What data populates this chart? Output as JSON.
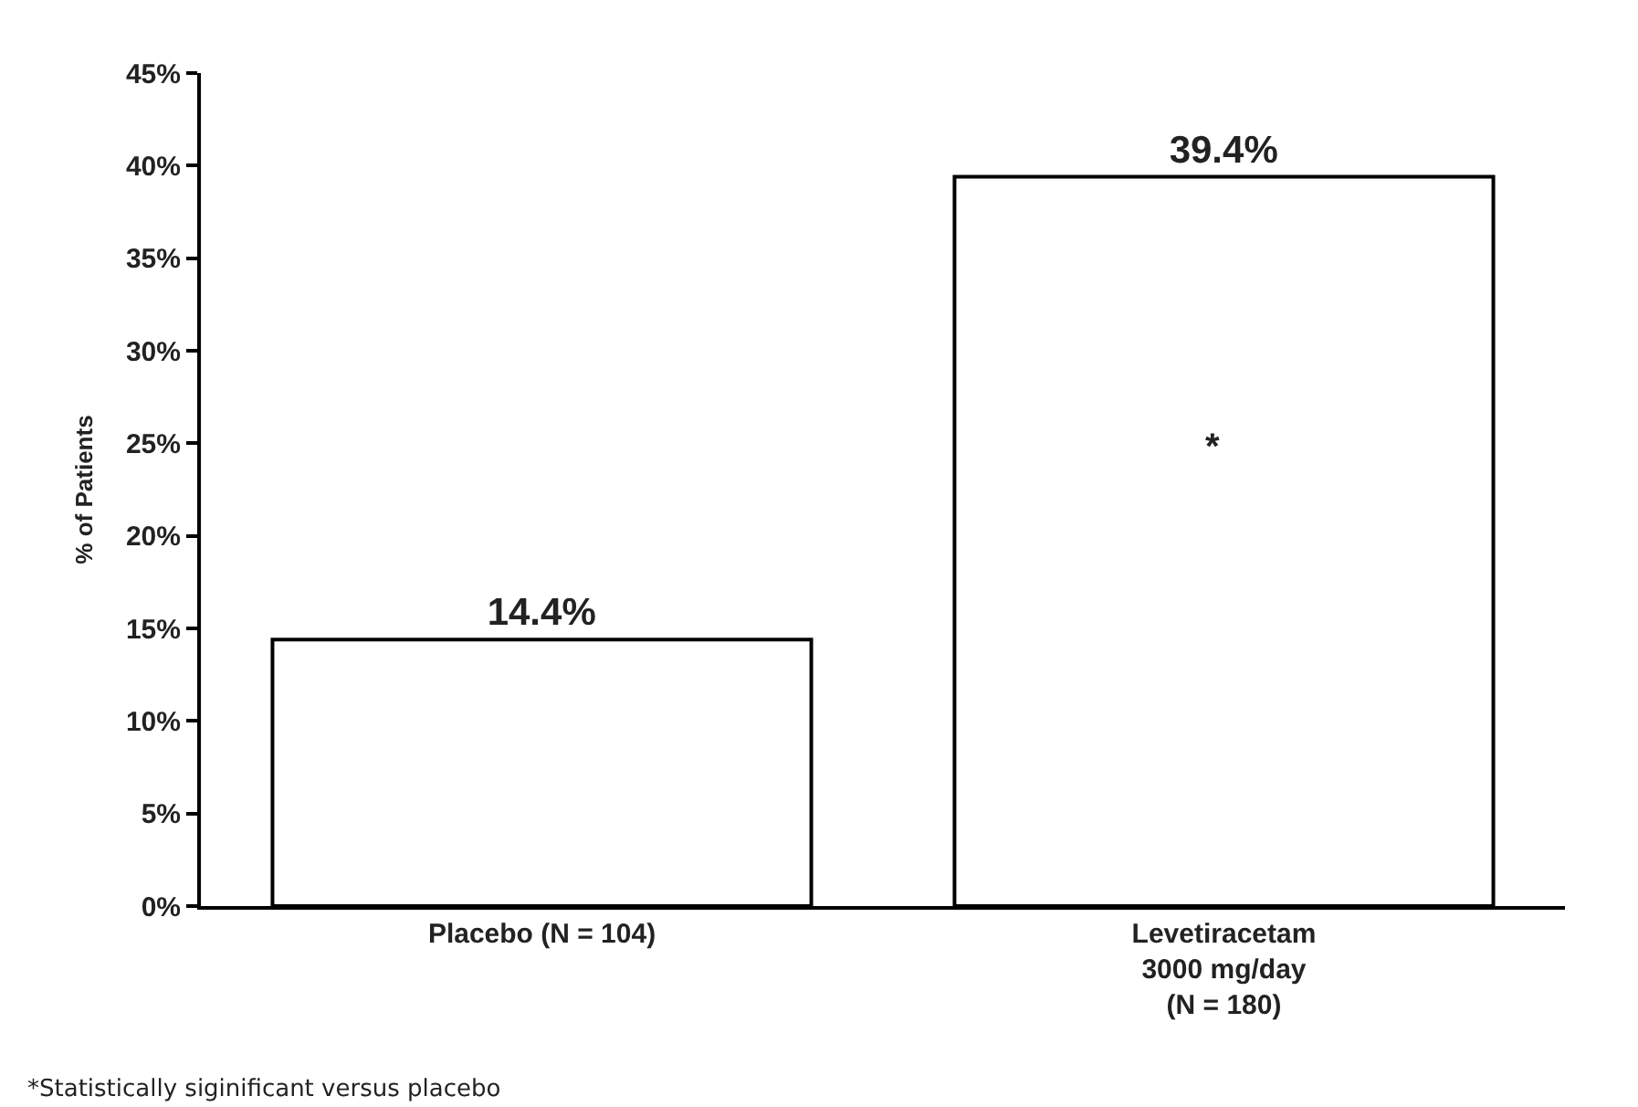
{
  "chart_data": {
    "type": "bar",
    "ylabel": "% of Patients",
    "categories": [
      "Placebo (N = 104)",
      "Levetiracetam\n3000 mg/day\n(N = 180)"
    ],
    "values": [
      14.4,
      39.4
    ],
    "color": "#ffffff",
    "value_labels": [
      "14.4%",
      "39.4%"
    ],
    "ylim": [
      0,
      45
    ],
    "yticks": [
      {
        "value": 0,
        "label": "0%"
      },
      {
        "value": 5,
        "label": "5%"
      },
      {
        "value": 10,
        "label": "10%"
      },
      {
        "value": 15,
        "label": "15%"
      },
      {
        "value": 20,
        "label": "20%"
      },
      {
        "value": 25,
        "label": "25%"
      },
      {
        "value": 30,
        "label": "30%"
      },
      {
        "value": 35,
        "label": "35%"
      },
      {
        "value": 40,
        "label": "40%"
      },
      {
        "value": 45,
        "label": "45%"
      }
    ],
    "legend": false,
    "annotations": [
      "*",
      "*Statistically siginificant versus placebo"
    ]
  }
}
